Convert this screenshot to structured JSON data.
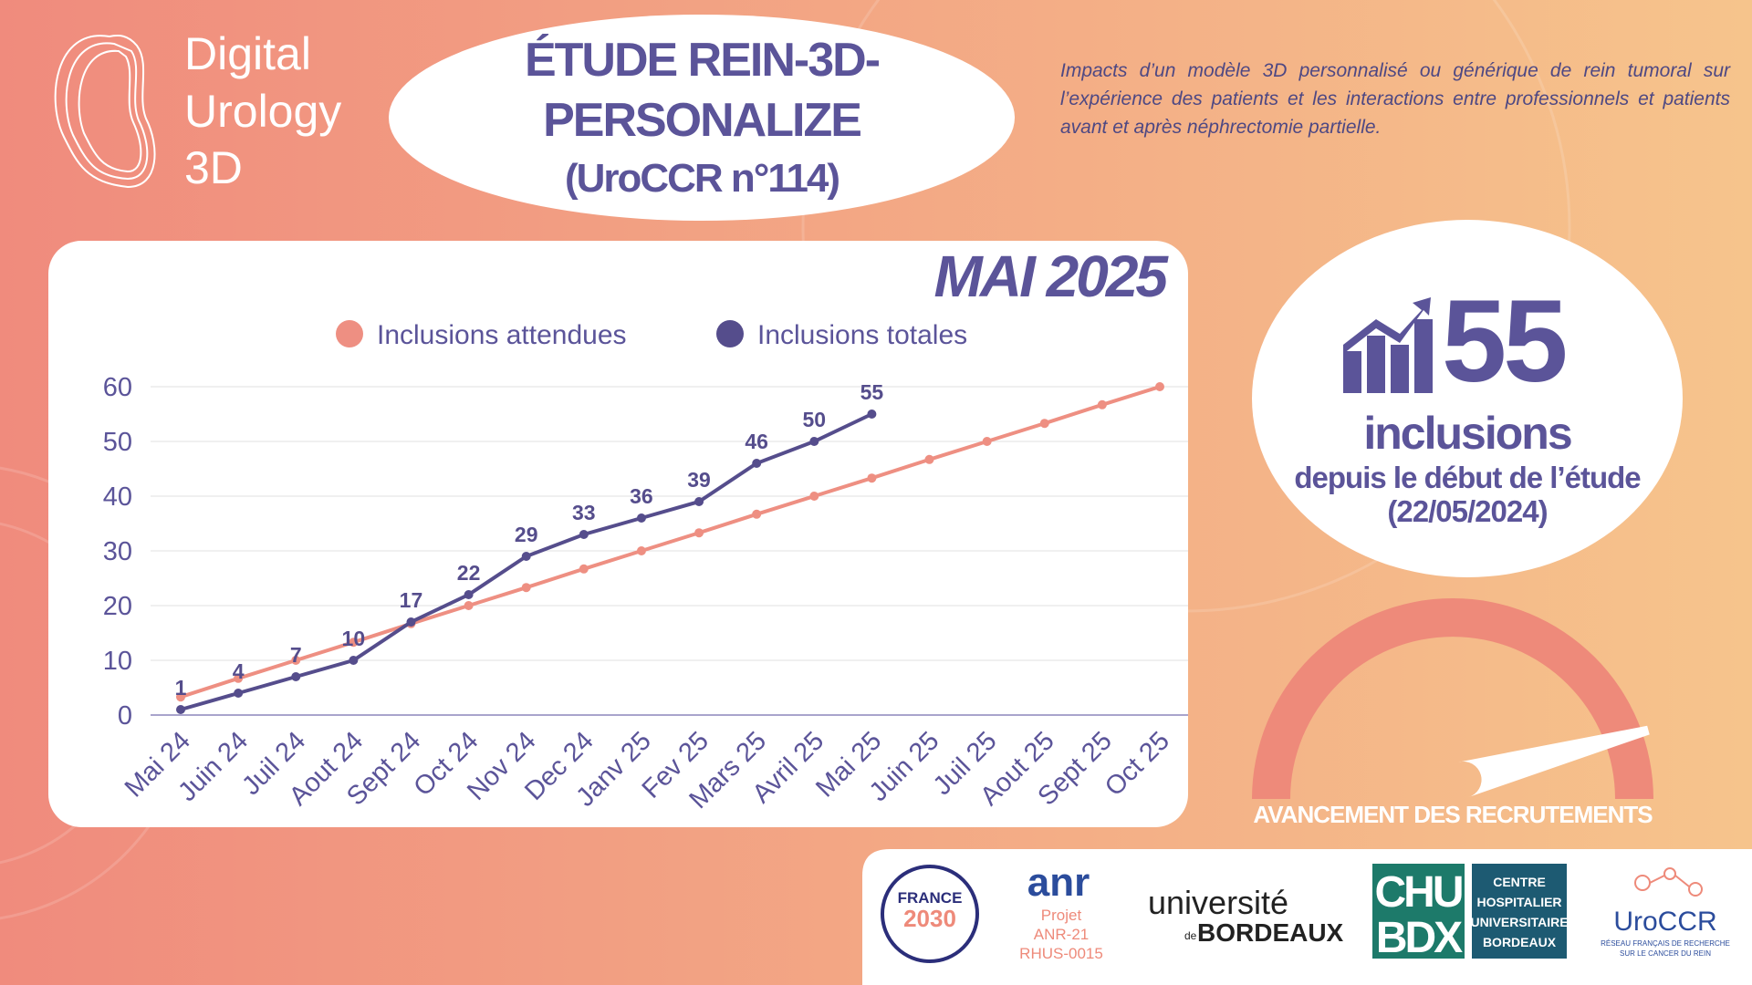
{
  "logo": {
    "lines": [
      "Digital",
      "Urology",
      "3D"
    ]
  },
  "header": {
    "title_lines": [
      "ÉTUDE REIN-3D-",
      "PERSONALIZE",
      "(UroCCR n°114)"
    ],
    "description": "Impacts d’un modèle 3D personnalisé ou générique de rein tumoral sur l’expérience des patients et les interactions entre professionnels et patients avant et après néphrectomie partielle."
  },
  "chart_data": {
    "type": "line",
    "title": "MAI 2025",
    "categories": [
      "Mai 24",
      "Juin 24",
      "Juil 24",
      "Aout 24",
      "Sept 24",
      "Oct 24",
      "Nov 24",
      "Dec 24",
      "Janv 25",
      "Fev 25",
      "Mars 25",
      "Avril 25",
      "Mai 25",
      "Juin 25",
      "Juil 25",
      "Aout 25",
      "Sept 25",
      "Oct 25"
    ],
    "series": [
      {
        "name": "Inclusions attendues",
        "color": "#ee8f82",
        "values": [
          3.3,
          6.7,
          10,
          13.3,
          16.7,
          20,
          23.3,
          26.7,
          30,
          33.3,
          36.7,
          40,
          43.3,
          46.7,
          50,
          53.3,
          56.7,
          60
        ]
      },
      {
        "name": "Inclusions totales",
        "color": "#554d8c",
        "values": [
          1,
          4,
          7,
          10,
          17,
          22,
          29,
          33,
          36,
          39,
          46,
          50,
          55,
          null,
          null,
          null,
          null,
          null
        ]
      }
    ],
    "ylim": [
      0,
      60
    ],
    "yticks": [
      0,
      10,
      20,
      30,
      40,
      50,
      60
    ],
    "grid": true,
    "legend": "top"
  },
  "summary": {
    "count": 55,
    "label": "inclusions",
    "sublines": [
      "depuis le début de l’étude",
      "(22/05/2024)"
    ]
  },
  "gauge": {
    "label": "AVANCEMENT DES RECRUTEMENTS"
  },
  "partners": {
    "france": [
      "FRANCE",
      "2030"
    ],
    "anr": [
      "anr",
      "Projet",
      "ANR-21",
      "RHUS-0015"
    ],
    "bordeaux": [
      "université",
      "de",
      "BORDEAUX"
    ],
    "chu": [
      "CHU",
      "BDX",
      "CENTRE",
      "HOSPITALIER",
      "UNIVERSITAIRE",
      "BORDEAUX"
    ],
    "uroccr": [
      "UroCCR",
      "RÉSEAU FRANÇAIS DE RECHERCHE",
      "SUR LE CANCER DU REIN"
    ]
  }
}
